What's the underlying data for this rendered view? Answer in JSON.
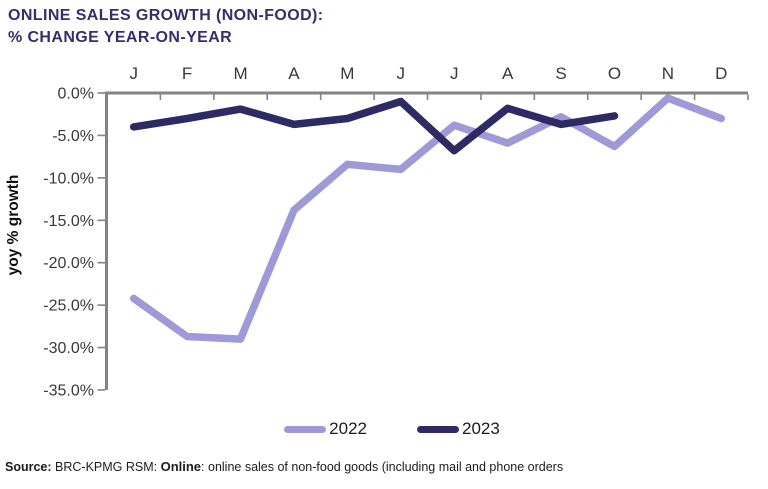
{
  "title": {
    "line1": "ONLINE SALES GROWTH (NON-FOOD):",
    "line2": "% CHANGE YEAR-ON-YEAR"
  },
  "chart_data": {
    "type": "line",
    "title": "ONLINE SALES GROWTH (NON-FOOD): % CHANGE YEAR-ON-YEAR",
    "categories": [
      "J",
      "F",
      "M",
      "A",
      "M",
      "J",
      "J",
      "A",
      "S",
      "O",
      "N",
      "D"
    ],
    "series": [
      {
        "name": "2022",
        "color": "#9e9ad8",
        "values": [
          -24.2,
          -28.7,
          -29.0,
          -13.8,
          -8.4,
          -9.0,
          -3.8,
          -5.9,
          -2.8,
          -6.3,
          -0.6,
          -3.0
        ]
      },
      {
        "name": "2023",
        "color": "#2e2b64",
        "values": [
          -4.0,
          -3.0,
          -1.9,
          -3.7,
          -3.0,
          -1.0,
          -6.8,
          -1.8,
          -3.7,
          -2.7,
          null,
          null
        ]
      }
    ],
    "xlabel": "",
    "ylabel": "yoy % growth",
    "ylim": [
      -35,
      0
    ],
    "ytick_step": 5,
    "ytick_labels": [
      "0.0%",
      "-5.0%",
      "-10.0%",
      "-15.0%",
      "-20.0%",
      "-25.0%",
      "-30.0%",
      "-35.0%"
    ],
    "grid": false,
    "legend_position": "bottom",
    "axis_color": "#838383"
  },
  "footer": {
    "source_label": "Source:",
    "source_text": " BRC-KPMG RSM: ",
    "online_label": "Online",
    "online_rest": ": online sales of non-food goods (including mail and phone orders"
  },
  "colors": {
    "title_text": "#332f6d",
    "series_2022": "#9e9ad8",
    "series_2023": "#2e2b64",
    "axis": "#838383",
    "background": "#ffffff"
  }
}
